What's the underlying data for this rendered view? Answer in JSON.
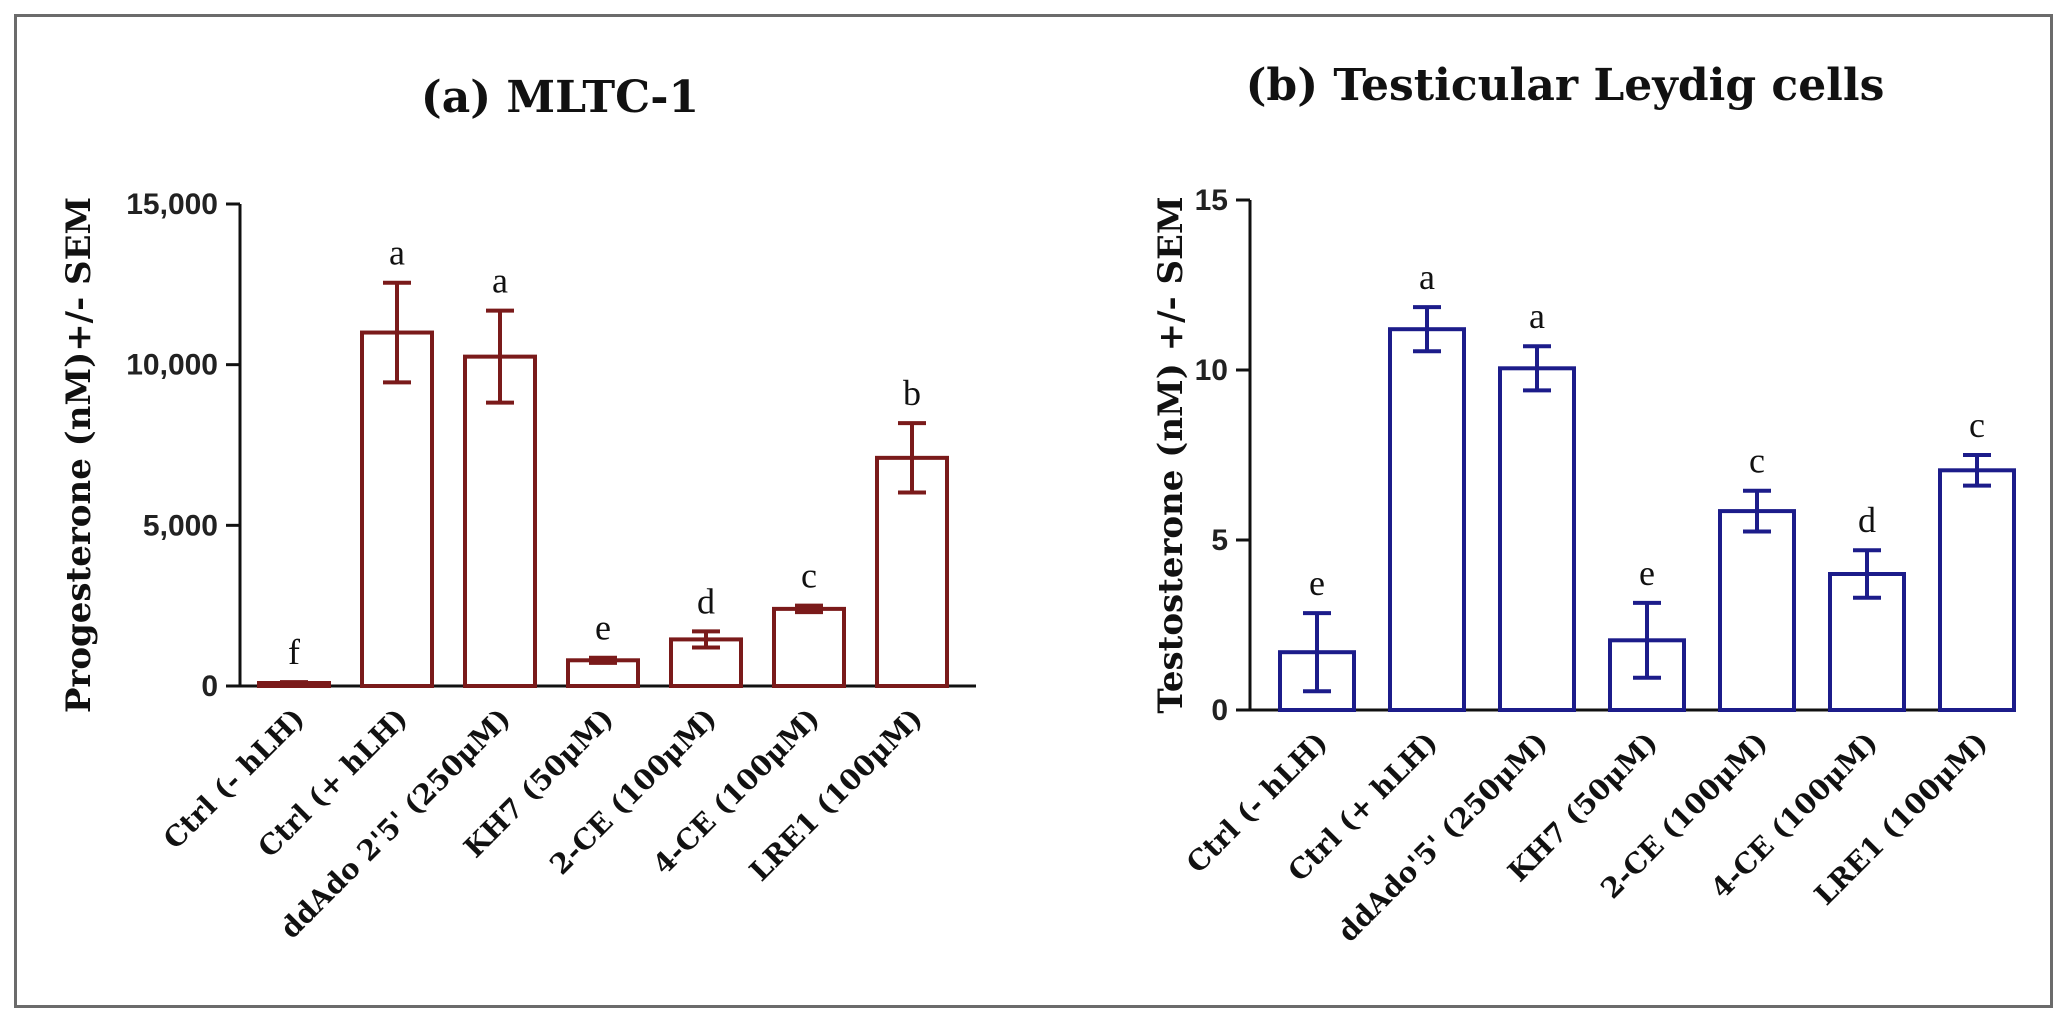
{
  "chart_data": [
    {
      "type": "bar",
      "title": "(a) MLTC-1",
      "ylabel": "Progesterone (nM)+/- SEM",
      "xlabel": "",
      "ylim": [
        0,
        15000
      ],
      "yticks": [
        0,
        5000,
        10000,
        15000
      ],
      "ytick_labels": [
        "0",
        "5,000",
        "10,000",
        "15,000"
      ],
      "color": "#7a1a1a",
      "categories": [
        "Ctrl (- hLH)",
        "Ctrl (+ hLH)",
        "ddAdo 2'5' (250μM)",
        "KH7 (50μM)",
        "2-CE (100μM)",
        "4-CE (100μM)",
        "LRE1 (100μM)"
      ],
      "values": [
        80,
        11000,
        10250,
        800,
        1450,
        2400,
        7100
      ],
      "errors": [
        40,
        1550,
        1430,
        80,
        250,
        100,
        1080
      ],
      "significance": [
        "f",
        "a",
        "a",
        "e",
        "d",
        "c",
        "b"
      ]
    },
    {
      "type": "bar",
      "title": "(b) Testicular Leydig cells",
      "ylabel": "Testosterone (nM) +/- SEM",
      "xlabel": "",
      "ylim": [
        0,
        15
      ],
      "yticks": [
        0,
        5,
        10,
        15
      ],
      "ytick_labels": [
        "0",
        "5",
        "10",
        "15"
      ],
      "color": "#1c1c8a",
      "categories": [
        "Ctrl (- hLH)",
        "Ctrl (+ hLH)",
        "ddAdo'5' (250μM)",
        "KH7 (50μM)",
        "2-CE (100μM)",
        "4-CE (100μM)",
        "LRE1 (100μM)"
      ],
      "values": [
        1.7,
        11.2,
        10.05,
        2.05,
        5.85,
        4.0,
        7.05
      ],
      "errors": [
        1.15,
        0.65,
        0.65,
        1.1,
        0.6,
        0.7,
        0.45
      ],
      "significance": [
        "e",
        "a",
        "a",
        "e",
        "c",
        "d",
        "c"
      ]
    }
  ]
}
